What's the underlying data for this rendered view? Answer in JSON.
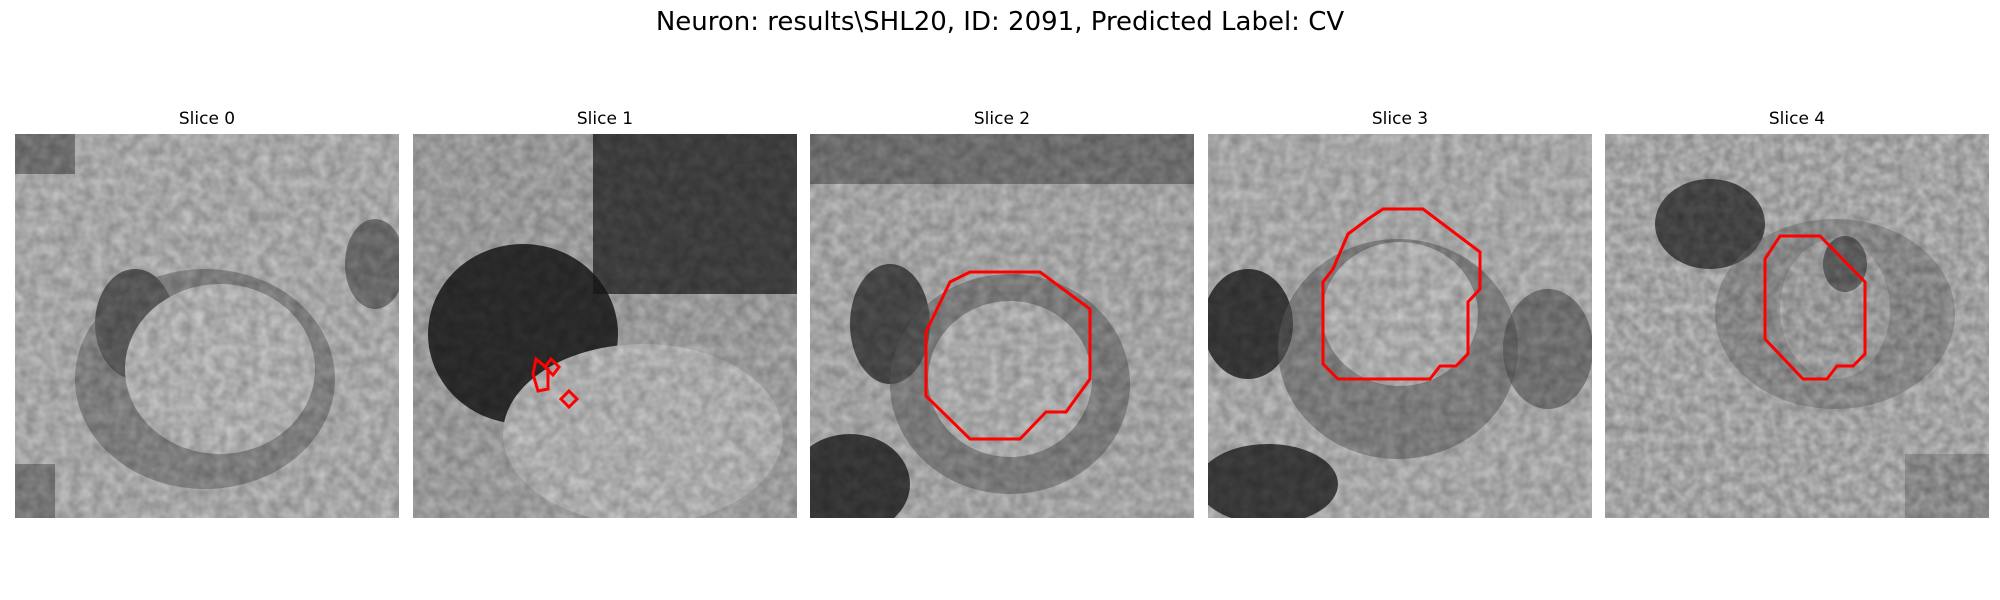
{
  "figure": {
    "title": "Neuron: results\\SHL20, ID: 2091, Predicted Label: CV"
  },
  "slices": [
    {
      "title": "Slice 0",
      "has_contour": false
    },
    {
      "title": "Slice 1",
      "has_contour": true
    },
    {
      "title": "Slice 2",
      "has_contour": true
    },
    {
      "title": "Slice 3",
      "has_contour": true
    },
    {
      "title": "Slice 4",
      "has_contour": true
    }
  ],
  "colors": {
    "contour": "#ff0000",
    "background": "#ffffff"
  }
}
